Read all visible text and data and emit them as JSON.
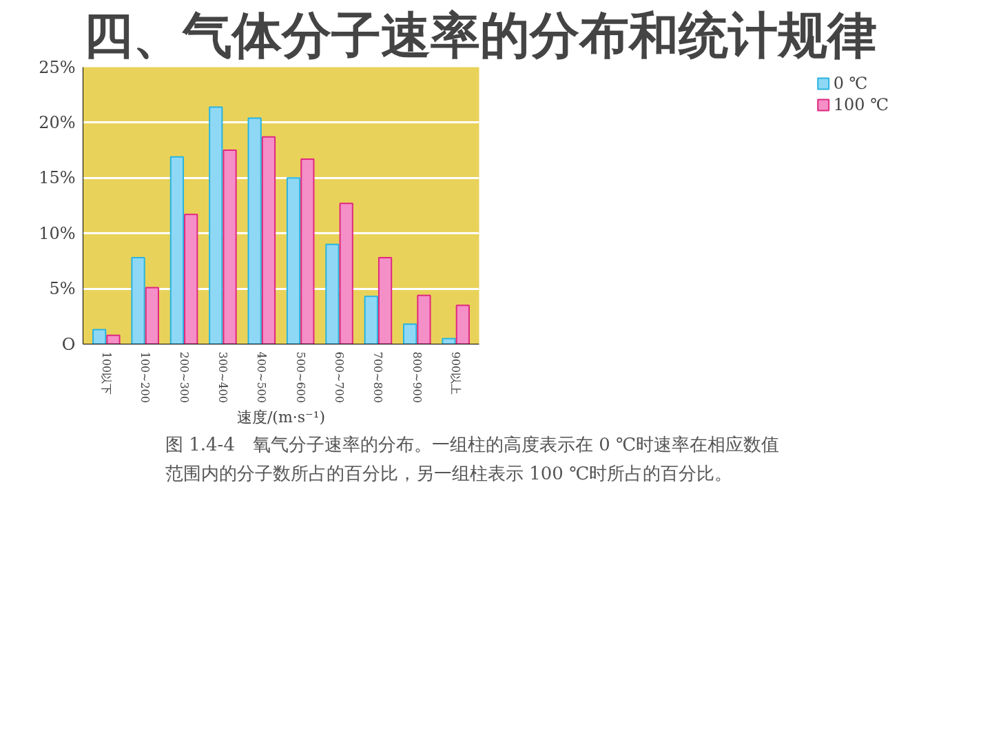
{
  "chart_data": {
    "type": "bar",
    "title": "四、气体分子速率的分布和统计规律",
    "xlabel": "速度/(m·s⁻¹)",
    "categories": [
      "100以下",
      "100~200",
      "200~300",
      "300~400",
      "400~500",
      "500~600",
      "600~700",
      "700~800",
      "800~900",
      "900以上"
    ],
    "series": [
      {
        "name": "0 ℃",
        "color": "#8fd8f5",
        "values": [
          1.3,
          7.8,
          16.9,
          21.4,
          20.4,
          15.0,
          9.0,
          4.3,
          1.8,
          0.5
        ]
      },
      {
        "name": "100 ℃",
        "color": "#f48fc8",
        "values": [
          0.8,
          5.1,
          11.7,
          17.5,
          18.7,
          16.7,
          12.7,
          7.8,
          4.4,
          3.5
        ]
      }
    ],
    "ylim": [
      0,
      25
    ],
    "yticks": [
      {
        "value": 0,
        "label": "O"
      },
      {
        "value": 5,
        "label": "5%"
      },
      {
        "value": 10,
        "label": "10%"
      },
      {
        "value": 15,
        "label": "15%"
      },
      {
        "value": 20,
        "label": "20%"
      },
      {
        "value": 25,
        "label": "25%"
      }
    ],
    "grid": "y",
    "legend": "right",
    "annotations": [
      "图 1.4-4　氧气分子速率的分布。一组柱的高度表示在 0 ℃时速率在相应数值范围内的分子数所占的百分比，另一组柱表示 100 ℃时所占的百分比。"
    ]
  }
}
